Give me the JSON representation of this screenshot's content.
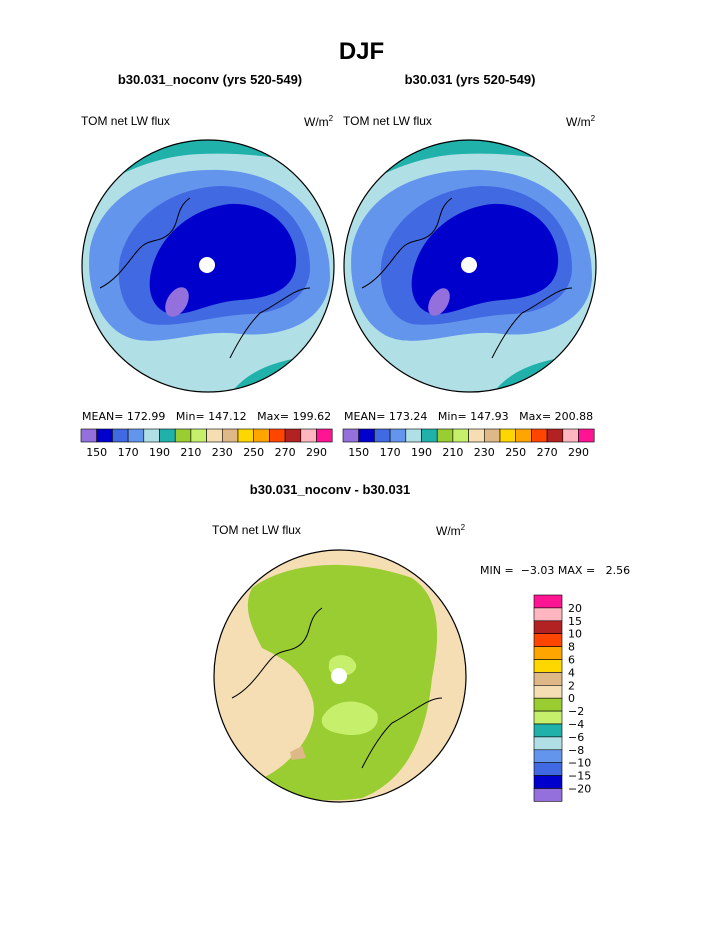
{
  "title": "DJF",
  "panels": [
    {
      "case": "b30.031_noconv (yrs 520-549)",
      "variable": "TOM net LW flux",
      "units_base": "W/m",
      "units_exp": "2",
      "stats": {
        "mean_label": "MEAN=",
        "mean": "172.99",
        "min_label": "Min=",
        "min": "147.12",
        "max_label": "Max=",
        "max": "199.62"
      }
    },
    {
      "case": "b30.031 (yrs 520-549)",
      "variable": "TOM net LW flux",
      "units_base": "W/m",
      "units_exp": "2",
      "stats": {
        "mean_label": "MEAN=",
        "mean": "173.24",
        "min_label": "Min=",
        "min": "147.93",
        "max_label": "Max=",
        "max": "200.88"
      }
    }
  ],
  "top_colorbar": {
    "colors": [
      "#9370db",
      "#0000cd",
      "#4169e1",
      "#6495ed",
      "#b0e0e6",
      "#20b2aa",
      "#9acd32",
      "#c6f06c",
      "#f5deb3",
      "#deb887",
      "#ffd700",
      "#ffa500",
      "#ff4500",
      "#b22222",
      "#ffb6c1",
      "#ff1493"
    ],
    "labels": [
      "150",
      "170",
      "190",
      "210",
      "230",
      "250",
      "270",
      "290"
    ]
  },
  "diff_panel": {
    "title": "b30.031_noconv - b30.031",
    "variable": "TOM net LW flux",
    "units_base": "W/m",
    "units_exp": "2",
    "stats": {
      "min_label": "MIN =",
      "min": "−3.03",
      "max_label": "MAX =",
      "max": "2.56"
    }
  },
  "diff_colorbar": {
    "colors": [
      "#ff1493",
      "#ffb6c1",
      "#b22222",
      "#ff4500",
      "#ffa500",
      "#ffd700",
      "#deb887",
      "#f5deb3",
      "#9acd32",
      "#c6f06c",
      "#20b2aa",
      "#b0e0e6",
      "#6495ed",
      "#4169e1",
      "#0000cd",
      "#9370db"
    ],
    "labels": [
      "20",
      "15",
      "10",
      "8",
      "6",
      "4",
      "2",
      "0",
      "−2",
      "−4",
      "−6",
      "−8",
      "−10",
      "−15",
      "−20"
    ]
  }
}
